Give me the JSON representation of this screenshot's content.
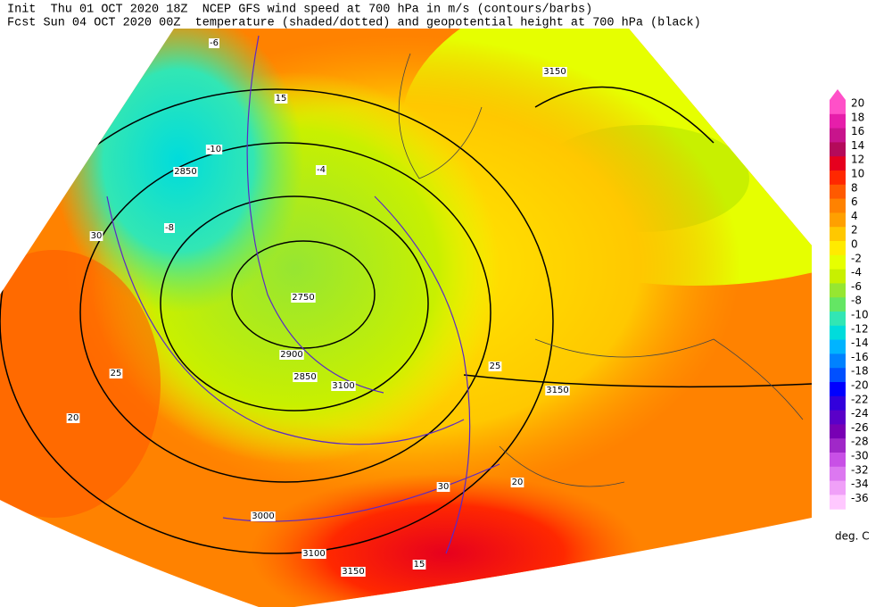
{
  "header": {
    "line1": "Init  Thu 01 OCT 2020 18Z  NCEP GFS wind speed at 700 hPa in m/s (contours/barbs)",
    "line2": "Fcst Sun 04 OCT 2020 00Z  temperature (shaded/dotted) and geopotential height at 700 hPa (black)"
  },
  "legend": {
    "unit": "deg. C",
    "levels": [
      20,
      18,
      16,
      14,
      12,
      10,
      8,
      6,
      4,
      2,
      0,
      -2,
      -4,
      -6,
      -8,
      -10,
      -12,
      -14,
      -16,
      -18,
      -20,
      -22,
      -24,
      -26,
      -28,
      -30,
      -32,
      -34,
      -36
    ],
    "colors": [
      "#ff50c8",
      "#e61eaa",
      "#c8148c",
      "#b40a5a",
      "#e6001e",
      "#ff2800",
      "#ff5a00",
      "#ff8200",
      "#ffa000",
      "#ffc800",
      "#ffeb00",
      "#e6ff00",
      "#c8f000",
      "#96e632",
      "#64e664",
      "#32e6b4",
      "#00dcdc",
      "#00b4ff",
      "#0082ff",
      "#0050ff",
      "#0000ff",
      "#3200dc",
      "#5a00c8",
      "#7800b4",
      "#a028c8",
      "#c850e6",
      "#dc78f0",
      "#f0a0f8",
      "#ffc8ff"
    ]
  },
  "map_labels": [
    "3150",
    "2850",
    "2750",
    "2900",
    "2850",
    "3100",
    "3150",
    "3000",
    "3100",
    "3150",
    "30",
    "25",
    "20",
    "15",
    "20",
    "15",
    "25",
    "30",
    "-6",
    "-10",
    "-8",
    "-4"
  ]
}
